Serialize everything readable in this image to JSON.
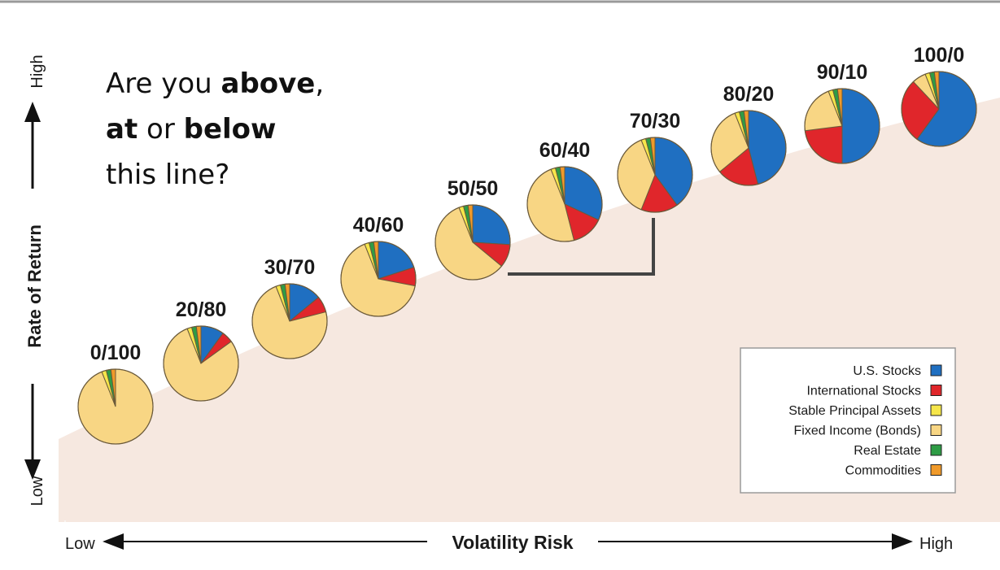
{
  "chart_data": {
    "type": "pie",
    "title": "",
    "xlabel": "Volatility Risk",
    "ylabel": "Rate of Return",
    "x_axis": {
      "low_label": "Low",
      "high_label": "High"
    },
    "y_axis": {
      "low_label": "Low",
      "high_label": "High"
    },
    "question": {
      "line1_prefix": "Are you ",
      "line1_bold": "above",
      "line1_suffix": ",",
      "line2_bold1": "at",
      "line2_mid": " or ",
      "line2_bold2": "below",
      "line3": "this line?"
    },
    "categories": [
      "U.S. Stocks",
      "International Stocks",
      "Stable Principal Assets",
      "Fixed Income (Bonds)",
      "Real Estate",
      "Commodities"
    ],
    "colors": {
      "U.S. Stocks": "#1f6fc1",
      "International Stocks": "#e0262b",
      "Stable Principal Assets": "#f6e64a",
      "Fixed Income (Bonds)": "#f8d684",
      "Real Estate": "#2e9c45",
      "Commodities": "#f09a2a"
    },
    "legend_position": "bottom-right",
    "portfolios": [
      {
        "label": "0/100",
        "values": [
          0,
          0,
          2,
          94,
          2,
          2
        ]
      },
      {
        "label": "20/80",
        "values": [
          10,
          5,
          2,
          79,
          2,
          2
        ]
      },
      {
        "label": "30/70",
        "values": [
          14,
          7,
          2,
          73,
          2,
          2
        ]
      },
      {
        "label": "40/60",
        "values": [
          20,
          8,
          2,
          66,
          2,
          2
        ]
      },
      {
        "label": "50/50",
        "values": [
          26,
          10,
          2,
          58,
          2,
          2
        ]
      },
      {
        "label": "60/40",
        "values": [
          32,
          14,
          2,
          48,
          2,
          2
        ]
      },
      {
        "label": "70/30",
        "values": [
          40,
          16,
          2,
          38,
          2,
          2
        ]
      },
      {
        "label": "80/20",
        "values": [
          46,
          18,
          2,
          30,
          2,
          2
        ]
      },
      {
        "label": "90/10",
        "values": [
          50,
          23,
          2,
          21,
          2,
          2
        ]
      },
      {
        "label": "100/0",
        "values": [
          60,
          28,
          2,
          6,
          2,
          2
        ]
      }
    ]
  },
  "style": {
    "area_fill": "#f6e8e0",
    "line_color": "#444444",
    "slice_line": "#6b5a3a"
  }
}
